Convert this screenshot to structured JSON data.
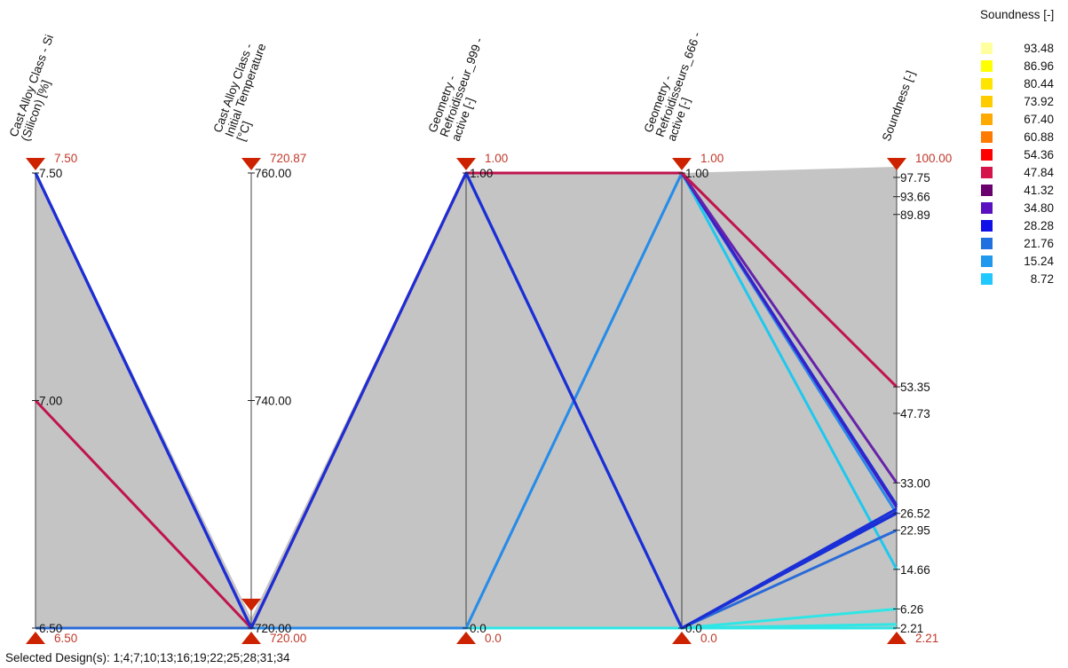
{
  "chart_data": {
    "type": "parallel-coordinates",
    "axes": [
      {
        "title_lines": [
          "Cast Alloy Class - Si",
          "(Silicon) [%]"
        ],
        "min": 6.5,
        "max": 7.5,
        "ticks": [
          {
            "value": 7.5,
            "label": "7.50"
          },
          {
            "value": 7.0,
            "label": "7.00"
          },
          {
            "value": 6.5,
            "label": "6.50"
          }
        ],
        "range_labels": {
          "top": "7.50",
          "bottom": "6.50"
        },
        "upper_marker": 7.5,
        "lower_marker": 6.5,
        "shaded": true
      },
      {
        "title_lines": [
          "Cast Alloy Class -",
          "Initial Temperature",
          "[°C]"
        ],
        "min": 720,
        "max": 760,
        "ticks": [
          {
            "value": 760,
            "label": "760.00"
          },
          {
            "value": 740,
            "label": "740.00"
          },
          {
            "value": 720,
            "label": "720.00"
          }
        ],
        "range_labels": {
          "top": "720.87",
          "bottom": "720.00"
        },
        "upper_marker": 720.87,
        "lower_marker": 720.0,
        "shaded": false
      },
      {
        "title_lines": [
          "Geometry -",
          "Refroidisseur_999 -",
          "active [-]"
        ],
        "min": 0,
        "max": 1,
        "ticks": [
          {
            "value": 1,
            "label": "1.00"
          },
          {
            "value": 0,
            "label": "0.0"
          }
        ],
        "range_labels": {
          "top": "1.00",
          "bottom": "0.0"
        },
        "upper_marker": 1,
        "lower_marker": 0,
        "shaded": true
      },
      {
        "title_lines": [
          "Geometry -",
          "Refroidisseurs_666 -",
          "active [-]"
        ],
        "min": 0,
        "max": 1,
        "ticks": [
          {
            "value": 1,
            "label": "1.00"
          },
          {
            "value": 0,
            "label": "0.0"
          }
        ],
        "range_labels": {
          "top": "1.00",
          "bottom": "0.0"
        },
        "upper_marker": 1,
        "lower_marker": 0,
        "shaded": true
      },
      {
        "title_lines": [
          "Soundness [-]"
        ],
        "min": 2.21,
        "max": 100,
        "ticks": [
          {
            "value": 97.75,
            "label": "97.75"
          },
          {
            "value": 93.66,
            "label": "93.66"
          },
          {
            "value": 89.89,
            "label": "89.89"
          },
          {
            "value": 53.35,
            "label": "53.35"
          },
          {
            "value": 47.73,
            "label": "47.73"
          },
          {
            "value": 33.0,
            "label": "33.00"
          },
          {
            "value": 26.52,
            "label": "26.52"
          },
          {
            "value": 22.95,
            "label": "22.95"
          },
          {
            "value": 14.66,
            "label": "14.66"
          },
          {
            "value": 6.26,
            "label": "6.26"
          },
          {
            "value": 2.21,
            "label": "2.21"
          }
        ],
        "range_labels": {
          "top": "100.00",
          "bottom": "2.21"
        },
        "upper_marker": 100,
        "lower_marker": 2.21,
        "shaded": true
      }
    ],
    "lines": [
      {
        "values": [
          6.5,
          720,
          0,
          0,
          2.21
        ],
        "color": "#2ee6e6"
      },
      {
        "values": [
          6.5,
          720,
          0,
          0,
          3.0
        ],
        "color": "#2ee6e6"
      },
      {
        "values": [
          6.5,
          720,
          0,
          0,
          6.26
        ],
        "color": "#2ee6e6"
      },
      {
        "values": [
          6.5,
          720,
          0,
          1,
          14.66
        ],
        "color": "#1ec8ee"
      },
      {
        "values": [
          6.5,
          720,
          0,
          1,
          26.52
        ],
        "color": "#2a8ae8"
      },
      {
        "values": [
          6.5,
          720,
          1,
          0,
          22.95
        ],
        "color": "#2a6ad8"
      },
      {
        "values": [
          7.5,
          720,
          1,
          0,
          26.52
        ],
        "color": "#1a2fd6"
      },
      {
        "values": [
          7.5,
          720,
          1,
          0,
          27.5
        ],
        "color": "#1a2fd6"
      },
      {
        "values": [
          7.5,
          720,
          1,
          1,
          28.3
        ],
        "color": "#1a2fd6"
      },
      {
        "values": [
          7.5,
          720,
          1,
          1,
          27.8
        ],
        "color": "#3a20c8"
      },
      {
        "values": [
          7.5,
          720,
          1,
          1,
          33.0
        ],
        "color": "#6622aa"
      },
      {
        "values": [
          7.0,
          720,
          1,
          1,
          53.35
        ],
        "color": "#c0144e"
      },
      {
        "values": [
          7.5,
          720,
          1,
          0,
          26.8
        ],
        "color": "#1a2fd6"
      }
    ],
    "legend": {
      "title": "Soundness [-]",
      "placement": "top-right",
      "entries": [
        {
          "label": "93.48",
          "color": "#ffffa0"
        },
        {
          "label": "86.96",
          "color": "#ffff00"
        },
        {
          "label": "80.44",
          "color": "#ffe400"
        },
        {
          "label": "73.92",
          "color": "#ffcc00"
        },
        {
          "label": "67.40",
          "color": "#ffaa00"
        },
        {
          "label": "60.88",
          "color": "#ff7a00"
        },
        {
          "label": "54.36",
          "color": "#ff0000"
        },
        {
          "label": "47.84",
          "color": "#d4144a"
        },
        {
          "label": "41.32",
          "color": "#6a006e"
        },
        {
          "label": "34.80",
          "color": "#5a10c0"
        },
        {
          "label": "28.28",
          "color": "#1010e8"
        },
        {
          "label": "21.76",
          "color": "#2070e0"
        },
        {
          "label": "15.24",
          "color": "#2098ee"
        },
        {
          "label": "8.72",
          "color": "#20c8ff"
        }
      ]
    },
    "colors": {
      "shade": "#c4c4c4",
      "marker": "#cc2200",
      "range_label": "#c0392b",
      "axis_line": "#444444"
    }
  },
  "footer": {
    "selected_designs": "Selected Design(s): 1;4;7;10;13;16;19;22;25;28;31;34"
  }
}
